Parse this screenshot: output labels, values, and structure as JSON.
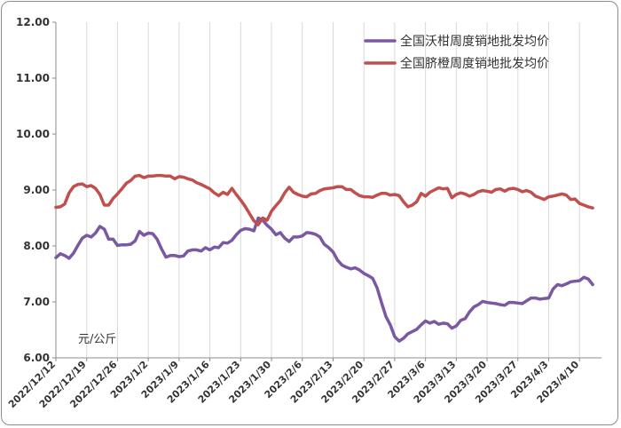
{
  "chart_data": {
    "type": "line",
    "ylabel": "元/公斤",
    "ylim": [
      6.0,
      12.0
    ],
    "yticks": [
      "6.00",
      "7.00",
      "8.00",
      "9.00",
      "10.00",
      "11.00",
      "12.00"
    ],
    "x_range": [
      "2022/12/12",
      "2023/4/15"
    ],
    "xticks": [
      "2022/12/12",
      "2022/12/19",
      "2022/12/26",
      "2023/1/2",
      "2023/1/9",
      "2023/1/16",
      "2023/1/23",
      "2023/1/30",
      "2023/2/6",
      "2023/2/13",
      "2023/2/20",
      "2023/2/27",
      "2023/3/6",
      "2023/3/13",
      "2023/3/20",
      "2023/3/27",
      "2023/4/3",
      "2023/4/10"
    ],
    "grid": "vertical",
    "legend_position": "top-right",
    "series": [
      {
        "name": "全国沃柑周度销地批发均价",
        "color": "#7b59a2",
        "points": [
          [
            "2022/12/12",
            7.79
          ],
          [
            "2022/12/13",
            7.86
          ],
          [
            "2022/12/14",
            7.83
          ],
          [
            "2022/12/15",
            7.78
          ],
          [
            "2022/12/16",
            7.87
          ],
          [
            "2022/12/17",
            8.01
          ],
          [
            "2022/12/18",
            8.14
          ],
          [
            "2022/12/19",
            8.19
          ],
          [
            "2022/12/20",
            8.16
          ],
          [
            "2022/12/21",
            8.23
          ],
          [
            "2022/12/22",
            8.35
          ],
          [
            "2022/12/23",
            8.3
          ],
          [
            "2022/12/24",
            8.12
          ],
          [
            "2022/12/25",
            8.12
          ],
          [
            "2022/12/26",
            8.01
          ],
          [
            "2022/12/27",
            8.02
          ],
          [
            "2022/12/28",
            8.02
          ],
          [
            "2022/12/29",
            8.03
          ],
          [
            "2022/12/30",
            8.09
          ],
          [
            "2022/12/31",
            8.26
          ],
          [
            "2023/1/1",
            8.19
          ],
          [
            "2023/1/2",
            8.23
          ],
          [
            "2023/1/3",
            8.22
          ],
          [
            "2023/1/4",
            8.12
          ],
          [
            "2023/1/5",
            7.95
          ],
          [
            "2023/1/6",
            7.8
          ],
          [
            "2023/1/7",
            7.83
          ],
          [
            "2023/1/8",
            7.83
          ],
          [
            "2023/1/9",
            7.81
          ],
          [
            "2023/1/10",
            7.82
          ],
          [
            "2023/1/11",
            7.91
          ],
          [
            "2023/1/12",
            7.93
          ],
          [
            "2023/1/13",
            7.93
          ],
          [
            "2023/1/14",
            7.91
          ],
          [
            "2023/1/15",
            7.97
          ],
          [
            "2023/1/16",
            7.93
          ],
          [
            "2023/1/17",
            7.98
          ],
          [
            "2023/1/18",
            7.97
          ],
          [
            "2023/1/19",
            8.06
          ],
          [
            "2023/1/20",
            8.05
          ],
          [
            "2023/1/21",
            8.1
          ],
          [
            "2023/1/22",
            8.2
          ],
          [
            "2023/1/23",
            8.28
          ],
          [
            "2023/1/24",
            8.31
          ],
          [
            "2023/1/25",
            8.3
          ],
          [
            "2023/1/26",
            8.27
          ],
          [
            "2023/1/27",
            8.5
          ],
          [
            "2023/1/28",
            8.46
          ],
          [
            "2023/1/29",
            8.37
          ],
          [
            "2023/1/30",
            8.3
          ],
          [
            "2023/1/31",
            8.2
          ],
          [
            "2023/2/1",
            8.24
          ],
          [
            "2023/2/2",
            8.14
          ],
          [
            "2023/2/3",
            8.08
          ],
          [
            "2023/2/4",
            8.16
          ],
          [
            "2023/2/5",
            8.16
          ],
          [
            "2023/2/6",
            8.18
          ],
          [
            "2023/2/7",
            8.24
          ],
          [
            "2023/2/8",
            8.23
          ],
          [
            "2023/2/9",
            8.21
          ],
          [
            "2023/2/10",
            8.16
          ],
          [
            "2023/2/11",
            8.03
          ],
          [
            "2023/2/12",
            7.97
          ],
          [
            "2023/2/13",
            7.89
          ],
          [
            "2023/2/14",
            7.75
          ],
          [
            "2023/2/15",
            7.66
          ],
          [
            "2023/2/16",
            7.62
          ],
          [
            "2023/2/17",
            7.59
          ],
          [
            "2023/2/18",
            7.61
          ],
          [
            "2023/2/19",
            7.57
          ],
          [
            "2023/2/20",
            7.51
          ],
          [
            "2023/2/21",
            7.47
          ],
          [
            "2023/2/22",
            7.42
          ],
          [
            "2023/2/23",
            7.25
          ],
          [
            "2023/2/24",
            6.99
          ],
          [
            "2023/2/25",
            6.74
          ],
          [
            "2023/2/26",
            6.59
          ],
          [
            "2023/2/27",
            6.38
          ],
          [
            "2023/2/28",
            6.3
          ],
          [
            "2023/3/1",
            6.35
          ],
          [
            "2023/3/2",
            6.43
          ],
          [
            "2023/3/3",
            6.47
          ],
          [
            "2023/3/4",
            6.51
          ],
          [
            "2023/3/5",
            6.59
          ],
          [
            "2023/3/6",
            6.66
          ],
          [
            "2023/3/7",
            6.62
          ],
          [
            "2023/3/8",
            6.65
          ],
          [
            "2023/3/9",
            6.6
          ],
          [
            "2023/3/10",
            6.62
          ],
          [
            "2023/3/11",
            6.61
          ],
          [
            "2023/3/12",
            6.53
          ],
          [
            "2023/3/13",
            6.57
          ],
          [
            "2023/3/14",
            6.67
          ],
          [
            "2023/3/15",
            6.7
          ],
          [
            "2023/3/16",
            6.82
          ],
          [
            "2023/3/17",
            6.91
          ],
          [
            "2023/3/18",
            6.95
          ],
          [
            "2023/3/19",
            7.01
          ],
          [
            "2023/3/20",
            6.99
          ],
          [
            "2023/3/21",
            6.98
          ],
          [
            "2023/3/22",
            6.97
          ],
          [
            "2023/3/23",
            6.95
          ],
          [
            "2023/3/24",
            6.94
          ],
          [
            "2023/3/25",
            6.99
          ],
          [
            "2023/3/26",
            6.99
          ],
          [
            "2023/3/27",
            6.98
          ],
          [
            "2023/3/28",
            6.97
          ],
          [
            "2023/3/29",
            7.02
          ],
          [
            "2023/3/30",
            7.07
          ],
          [
            "2023/3/31",
            7.07
          ],
          [
            "2023/4/1",
            7.05
          ],
          [
            "2023/4/2",
            7.06
          ],
          [
            "2023/4/3",
            7.07
          ],
          [
            "2023/4/4",
            7.23
          ],
          [
            "2023/4/5",
            7.31
          ],
          [
            "2023/4/6",
            7.29
          ],
          [
            "2023/4/7",
            7.32
          ],
          [
            "2023/4/8",
            7.36
          ],
          [
            "2023/4/9",
            7.37
          ],
          [
            "2023/4/10",
            7.38
          ],
          [
            "2023/4/11",
            7.44
          ],
          [
            "2023/4/12",
            7.41
          ],
          [
            "2023/4/13",
            7.31
          ]
        ]
      },
      {
        "name": "全国脐橙周度销地批发均价",
        "color": "#c0504d",
        "points": [
          [
            "2022/12/12",
            8.69
          ],
          [
            "2022/12/13",
            8.7
          ],
          [
            "2022/12/14",
            8.75
          ],
          [
            "2022/12/15",
            8.95
          ],
          [
            "2022/12/16",
            9.06
          ],
          [
            "2022/12/17",
            9.1
          ],
          [
            "2022/12/18",
            9.11
          ],
          [
            "2022/12/19",
            9.06
          ],
          [
            "2022/12/20",
            9.08
          ],
          [
            "2022/12/21",
            9.03
          ],
          [
            "2022/12/22",
            8.92
          ],
          [
            "2022/12/23",
            8.73
          ],
          [
            "2022/12/24",
            8.73
          ],
          [
            "2022/12/25",
            8.85
          ],
          [
            "2022/12/26",
            8.93
          ],
          [
            "2022/12/27",
            9.02
          ],
          [
            "2022/12/28",
            9.12
          ],
          [
            "2022/12/29",
            9.17
          ],
          [
            "2022/12/30",
            9.25
          ],
          [
            "2022/12/31",
            9.26
          ],
          [
            "2023/1/1",
            9.22
          ],
          [
            "2023/1/2",
            9.25
          ],
          [
            "2023/1/3",
            9.25
          ],
          [
            "2023/1/4",
            9.26
          ],
          [
            "2023/1/5",
            9.26
          ],
          [
            "2023/1/6",
            9.25
          ],
          [
            "2023/1/7",
            9.25
          ],
          [
            "2023/1/8",
            9.2
          ],
          [
            "2023/1/9",
            9.24
          ],
          [
            "2023/1/10",
            9.23
          ],
          [
            "2023/1/11",
            9.2
          ],
          [
            "2023/1/12",
            9.18
          ],
          [
            "2023/1/13",
            9.13
          ],
          [
            "2023/1/14",
            9.1
          ],
          [
            "2023/1/15",
            9.06
          ],
          [
            "2023/1/16",
            9.02
          ],
          [
            "2023/1/17",
            8.95
          ],
          [
            "2023/1/18",
            8.9
          ],
          [
            "2023/1/19",
            8.96
          ],
          [
            "2023/1/20",
            8.92
          ],
          [
            "2023/1/21",
            9.03
          ],
          [
            "2023/1/22",
            8.92
          ],
          [
            "2023/1/23",
            8.82
          ],
          [
            "2023/1/24",
            8.71
          ],
          [
            "2023/1/25",
            8.58
          ],
          [
            "2023/1/26",
            8.45
          ],
          [
            "2023/1/27",
            8.38
          ],
          [
            "2023/1/28",
            8.5
          ],
          [
            "2023/1/29",
            8.46
          ],
          [
            "2023/1/30",
            8.62
          ],
          [
            "2023/1/31",
            8.72
          ],
          [
            "2023/2/1",
            8.81
          ],
          [
            "2023/2/2",
            8.95
          ],
          [
            "2023/2/3",
            9.05
          ],
          [
            "2023/2/4",
            8.96
          ],
          [
            "2023/2/5",
            8.92
          ],
          [
            "2023/2/6",
            8.89
          ],
          [
            "2023/2/7",
            8.88
          ],
          [
            "2023/2/8",
            8.93
          ],
          [
            "2023/2/9",
            8.94
          ],
          [
            "2023/2/10",
            8.99
          ],
          [
            "2023/2/11",
            9.02
          ],
          [
            "2023/2/12",
            9.03
          ],
          [
            "2023/2/13",
            9.04
          ],
          [
            "2023/2/14",
            9.06
          ],
          [
            "2023/2/15",
            9.06
          ],
          [
            "2023/2/16",
            9.01
          ],
          [
            "2023/2/17",
            9.01
          ],
          [
            "2023/2/18",
            8.95
          ],
          [
            "2023/2/19",
            8.9
          ],
          [
            "2023/2/20",
            8.88
          ],
          [
            "2023/2/21",
            8.88
          ],
          [
            "2023/2/22",
            8.87
          ],
          [
            "2023/2/23",
            8.91
          ],
          [
            "2023/2/24",
            8.94
          ],
          [
            "2023/2/25",
            8.94
          ],
          [
            "2023/2/26",
            8.91
          ],
          [
            "2023/2/27",
            8.92
          ],
          [
            "2023/2/28",
            8.9
          ],
          [
            "2023/3/1",
            8.79
          ],
          [
            "2023/3/2",
            8.7
          ],
          [
            "2023/3/3",
            8.73
          ],
          [
            "2023/3/4",
            8.79
          ],
          [
            "2023/3/5",
            8.94
          ],
          [
            "2023/3/6",
            8.89
          ],
          [
            "2023/3/7",
            8.96
          ],
          [
            "2023/3/8",
            9.0
          ],
          [
            "2023/3/9",
            9.04
          ],
          [
            "2023/3/10",
            9.02
          ],
          [
            "2023/3/11",
            9.03
          ],
          [
            "2023/3/12",
            8.86
          ],
          [
            "2023/3/13",
            8.92
          ],
          [
            "2023/3/14",
            8.95
          ],
          [
            "2023/3/15",
            8.93
          ],
          [
            "2023/3/16",
            8.89
          ],
          [
            "2023/3/17",
            8.92
          ],
          [
            "2023/3/18",
            8.97
          ],
          [
            "2023/3/19",
            8.99
          ],
          [
            "2023/3/20",
            8.98
          ],
          [
            "2023/3/21",
            8.96
          ],
          [
            "2023/3/22",
            9.01
          ],
          [
            "2023/3/23",
            9.02
          ],
          [
            "2023/3/24",
            8.98
          ],
          [
            "2023/3/25",
            9.02
          ],
          [
            "2023/3/26",
            9.03
          ],
          [
            "2023/3/27",
            9.01
          ],
          [
            "2023/3/28",
            8.97
          ],
          [
            "2023/3/29",
            8.99
          ],
          [
            "2023/3/30",
            8.96
          ],
          [
            "2023/3/31",
            8.89
          ],
          [
            "2023/4/1",
            8.86
          ],
          [
            "2023/4/2",
            8.83
          ],
          [
            "2023/4/3",
            8.88
          ],
          [
            "2023/4/4",
            8.89
          ],
          [
            "2023/4/5",
            8.91
          ],
          [
            "2023/4/6",
            8.93
          ],
          [
            "2023/4/7",
            8.91
          ],
          [
            "2023/4/8",
            8.83
          ],
          [
            "2023/4/9",
            8.84
          ],
          [
            "2023/4/10",
            8.76
          ],
          [
            "2023/4/11",
            8.73
          ],
          [
            "2023/4/12",
            8.7
          ],
          [
            "2023/4/13",
            8.68
          ]
        ]
      }
    ]
  },
  "colors": {
    "grid": "#d9d9d9",
    "axis": "#8c8c8c",
    "text": "#333333",
    "border": "#8c8c8c"
  }
}
